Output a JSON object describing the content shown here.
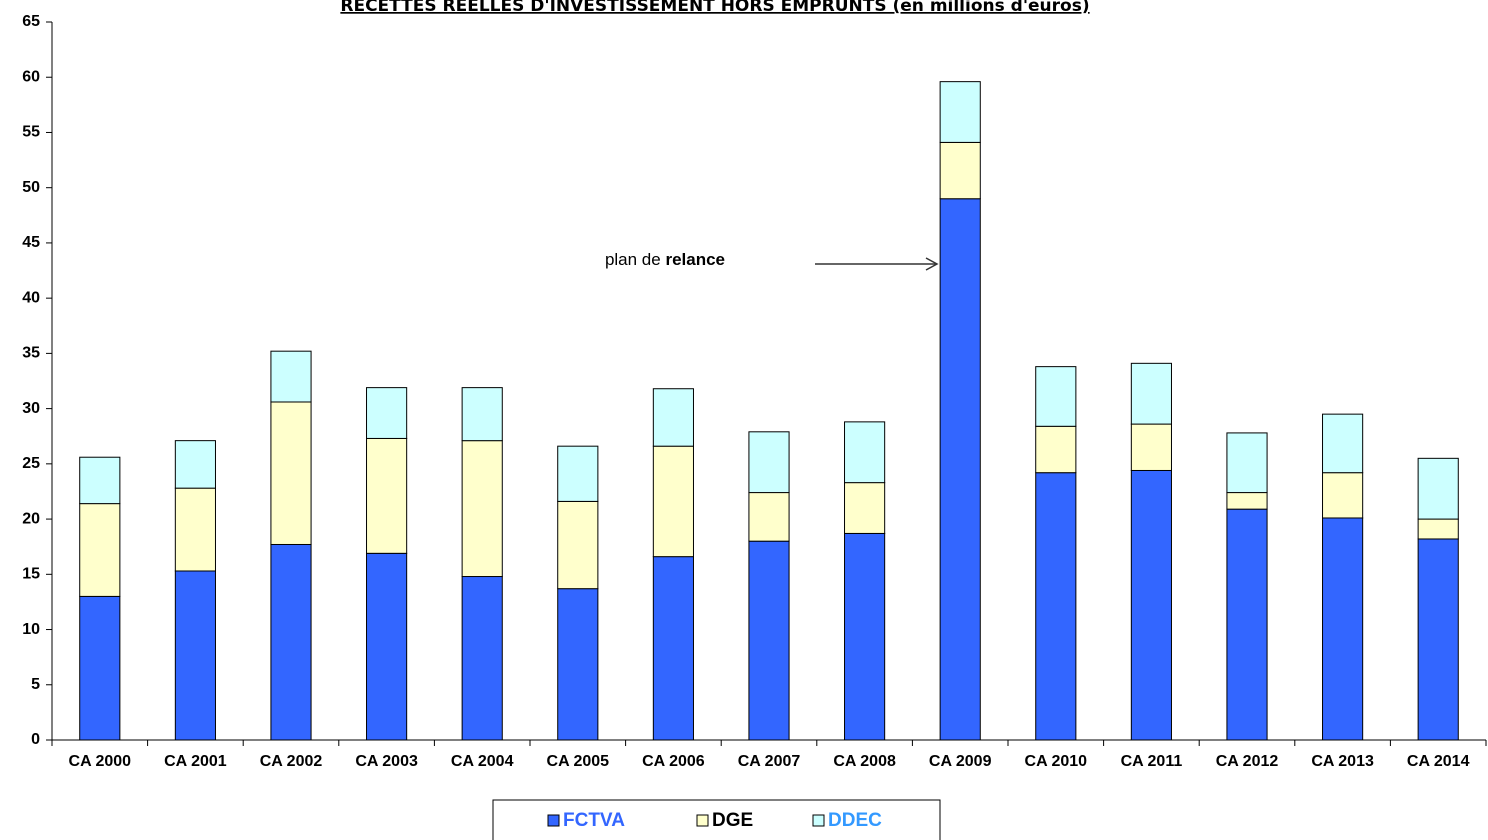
{
  "chart_data": {
    "type": "stacked_bar",
    "title": "RECETTES REELLES D'INVESTISSEMENT HORS EMPRUNTS  (en millions d'euros)",
    "annotation": {
      "text": "plan de",
      "bold": "relance"
    },
    "categories": [
      "CA 2000",
      "CA 2001",
      "CA 2002",
      "CA 2003",
      "CA 2004",
      "CA 2005",
      "CA 2006",
      "CA 2007",
      "CA 2008",
      "CA 2009",
      "CA 2010",
      "CA 2011",
      "CA 2012",
      "CA 2013",
      "CA 2014"
    ],
    "series": [
      {
        "name": "FCTVA",
        "color": "#3366ff",
        "label_color": "#3366ff",
        "values": [
          13.0,
          15.3,
          17.7,
          16.9,
          14.8,
          13.7,
          16.6,
          18.0,
          18.7,
          49.0,
          24.2,
          24.4,
          20.9,
          20.1,
          18.2
        ]
      },
      {
        "name": "DGE",
        "color": "#ffffcc",
        "label_color": "#000000",
        "values": [
          8.4,
          7.5,
          12.9,
          10.4,
          12.3,
          7.9,
          10.0,
          4.4,
          4.6,
          5.1,
          4.2,
          4.2,
          1.5,
          4.1,
          1.8
        ]
      },
      {
        "name": "DDEC",
        "color": "#ccffff",
        "label_color": "#3399ff",
        "values": [
          4.2,
          4.3,
          4.6,
          4.6,
          4.8,
          5.0,
          5.2,
          5.5,
          5.5,
          5.5,
          5.4,
          5.5,
          5.4,
          5.3,
          5.5
        ]
      }
    ],
    "ylim": [
      0,
      65
    ],
    "yticks": [
      0,
      5,
      10,
      15,
      20,
      25,
      30,
      35,
      40,
      45,
      50,
      55,
      60,
      65
    ],
    "legend": "bottom"
  }
}
